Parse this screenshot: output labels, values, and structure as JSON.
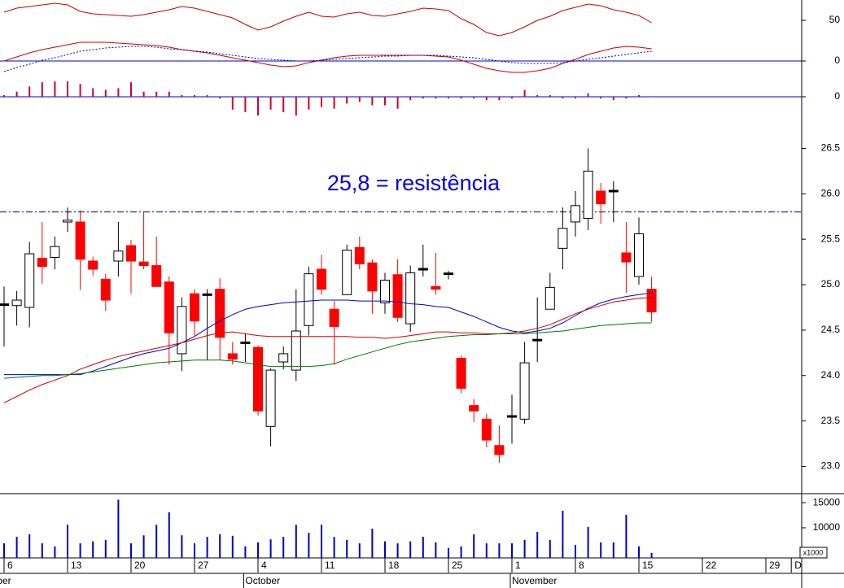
{
  "chart_data": [
    {
      "type": "line",
      "ylim": [
        -22,
        75
      ],
      "yticks": [
        0,
        50
      ],
      "zero_line_color": "#0000cc",
      "series": [
        {
          "color": "#cc0000",
          "values": [
            60,
            65,
            67,
            69,
            71,
            69,
            61,
            58,
            57,
            56,
            55,
            57,
            60,
            63,
            67,
            65,
            61,
            57,
            53,
            45,
            38,
            42,
            49,
            55,
            60,
            55,
            54,
            58,
            60,
            56,
            55,
            58,
            61,
            65,
            64,
            62,
            52,
            45,
            35,
            31,
            35,
            42,
            50,
            55,
            62,
            66,
            70,
            68,
            63,
            60,
            56,
            47
          ]
        },
        {
          "color": "#cc0000",
          "values": [
            0,
            5,
            10,
            14,
            17,
            20,
            23,
            23,
            23,
            22,
            21,
            20,
            19,
            17,
            14,
            12,
            10,
            7,
            4,
            1,
            -2,
            -5,
            -7,
            -6,
            -2,
            1,
            4,
            6,
            7,
            7,
            7,
            7,
            7,
            7,
            6,
            5,
            1,
            -4,
            -9,
            -12,
            -14,
            -14,
            -12,
            -9,
            -3,
            2,
            8,
            12,
            16,
            18,
            17,
            15
          ]
        },
        {
          "color": "#0000cc",
          "dash": true,
          "values": [
            -13,
            -8,
            -4,
            1,
            4,
            8,
            12,
            14,
            16,
            17,
            18,
            18,
            17,
            15,
            14,
            12,
            11,
            9,
            7,
            5,
            3,
            2,
            1,
            0,
            0,
            1,
            2,
            3,
            4,
            5,
            6,
            6,
            7,
            7,
            7,
            6,
            5,
            4,
            2,
            0,
            -2,
            -3,
            -3,
            -3,
            -2,
            0,
            2,
            4,
            6,
            8,
            10,
            12
          ]
        }
      ]
    },
    {
      "type": "bar",
      "ylim": [
        -20,
        20
      ],
      "yticks": [
        0
      ],
      "zero_line_color": "#0000cc",
      "color": "#cc0033",
      "values": [
        2,
        6,
        12,
        17,
        18,
        18,
        15,
        10,
        8,
        10,
        17,
        6,
        6,
        6,
        2,
        2,
        2,
        -2,
        -15,
        -18,
        -22,
        -15,
        -18,
        -22,
        -15,
        -12,
        -14,
        -8,
        -6,
        -10,
        -10,
        -14,
        -4,
        -2,
        -2,
        -2,
        -2,
        -2,
        -4,
        -4,
        -2,
        8,
        2,
        2,
        -2,
        -2,
        4,
        -2,
        -4,
        -2,
        2,
        0
      ]
    },
    {
      "type": "candlestick",
      "ylim": [
        22.7,
        26.88
      ],
      "yticks": [
        {
          "value": 23,
          "label": "23.0"
        },
        23.5,
        {
          "value": 24,
          "label": "24.0"
        },
        24.5,
        {
          "value": 25,
          "label": "25.0"
        },
        25.5,
        {
          "value": 26,
          "label": "26.0"
        },
        26.5
      ],
      "up_color": "#000000",
      "down_color": "#ff0000",
      "open": [
        24.78,
        24.77,
        24.75,
        25.29,
        25.3,
        25.69,
        25.69,
        25.26,
        25.06,
        25.26,
        25.43,
        25.25,
        25.21,
        25.03,
        24.24,
        24.9,
        24.89,
        24.95,
        24.24,
        24.36,
        24.31,
        23.44,
        24.15,
        24.06,
        24.55,
        25.17,
        24.73,
        24.89,
        25.41,
        25.24,
        24.8,
        25.11,
        24.57,
        25.17,
        24.98,
        25.12,
        24.19,
        23.67,
        23.52,
        23.23,
        23.55,
        23.52,
        24.39,
        24.73,
        25.4,
        25.69,
        25.73,
        26.03,
        26.03,
        25.35,
        25.09,
        24.95
      ],
      "high": [
        24.98,
        24.93,
        25.47,
        25.69,
        25.53,
        25.85,
        25.82,
        25.31,
        25.12,
        25.69,
        25.49,
        25.8,
        25.53,
        25.09,
        24.86,
        24.95,
        24.95,
        25.07,
        24.37,
        24.46,
        24.33,
        24.08,
        24.32,
        24.95,
        25.2,
        25.33,
        24.82,
        25.44,
        25.53,
        25.28,
        25.13,
        25.28,
        25.21,
        25.44,
        25.35,
        25.15,
        24.22,
        23.74,
        23.58,
        23.45,
        23.79,
        24.37,
        24.86,
        25.13,
        25.85,
        26.03,
        26.5,
        26.12,
        26.14,
        25.69,
        25.74,
        25.09
      ],
      "low": [
        24.32,
        24.55,
        24.53,
        25.01,
        25.17,
        25.58,
        24.94,
        25.1,
        24.71,
        25.09,
        24.9,
        25.17,
        24.98,
        24.12,
        24.05,
        24.44,
        24.17,
        24.17,
        24.12,
        24.15,
        23.56,
        23.22,
        24.07,
        23.94,
        24.44,
        24.89,
        24.12,
        24.89,
        25.17,
        24.68,
        24.68,
        24.59,
        24.48,
        25.09,
        24.89,
        25.06,
        23.81,
        23.49,
        23.21,
        23.04,
        23.25,
        23.47,
        24.15,
        24.73,
        25.17,
        25.53,
        25.6,
        25.67,
        25.69,
        24.91,
        25.0,
        24.59
      ],
      "close": [
        24.78,
        24.83,
        25.34,
        25.2,
        25.42,
        25.71,
        25.28,
        25.17,
        24.83,
        25.37,
        25.26,
        25.21,
        24.98,
        24.47,
        24.76,
        24.6,
        24.89,
        24.42,
        24.18,
        24.36,
        23.61,
        24.06,
        24.24,
        24.49,
        25.12,
        24.95,
        24.54,
        25.38,
        25.23,
        24.93,
        25.05,
        24.64,
        25.13,
        25.17,
        24.95,
        25.12,
        23.86,
        23.61,
        23.29,
        23.13,
        23.55,
        24.14,
        24.39,
        24.97,
        25.62,
        25.87,
        26.25,
        25.89,
        26.03,
        25.25,
        25.56,
        24.7
      ],
      "series": [
        {
          "color": "#0000cc",
          "values": [
            24.01,
            24.01,
            24.01,
            24.01,
            24.01,
            24.01,
            24.01,
            24.05,
            24.1,
            24.15,
            24.2,
            24.24,
            24.27,
            24.3,
            24.36,
            24.43,
            24.52,
            24.6,
            24.67,
            24.73,
            24.76,
            24.78,
            24.8,
            24.81,
            24.82,
            24.83,
            24.83,
            24.83,
            24.82,
            24.82,
            24.82,
            24.81,
            24.79,
            24.78,
            24.76,
            24.75,
            24.7,
            24.65,
            24.59,
            24.53,
            24.49,
            24.47,
            24.49,
            24.52,
            24.58,
            24.66,
            24.74,
            24.8,
            24.84,
            24.87,
            24.89,
            24.91
          ]
        },
        {
          "color": "#cc0000",
          "values": [
            23.7,
            23.77,
            23.84,
            23.9,
            23.95,
            24.0,
            24.07,
            24.12,
            24.17,
            24.21,
            24.24,
            24.27,
            24.3,
            24.33,
            24.36,
            24.4,
            24.44,
            24.47,
            24.48,
            24.46,
            24.44,
            24.43,
            24.43,
            24.43,
            24.43,
            24.43,
            24.43,
            24.43,
            24.42,
            24.42,
            24.41,
            24.42,
            24.44,
            24.46,
            24.48,
            24.48,
            24.47,
            24.47,
            24.46,
            24.46,
            24.47,
            24.49,
            24.52,
            24.56,
            24.62,
            24.68,
            24.73,
            24.77,
            24.81,
            24.83,
            24.85,
            24.86
          ]
        },
        {
          "color": "#007700",
          "values": [
            23.97,
            23.98,
            23.99,
            24.0,
            24.0,
            24.01,
            24.02,
            24.04,
            24.06,
            24.08,
            24.1,
            24.12,
            24.14,
            24.15,
            24.16,
            24.17,
            24.17,
            24.17,
            24.16,
            24.14,
            24.12,
            24.1,
            24.1,
            24.1,
            24.1,
            24.11,
            24.13,
            24.18,
            24.22,
            24.26,
            24.3,
            24.34,
            24.37,
            24.39,
            24.41,
            24.43,
            24.44,
            24.45,
            24.45,
            24.46,
            24.46,
            24.46,
            24.47,
            24.48,
            24.49,
            24.51,
            24.53,
            24.55,
            24.56,
            24.57,
            24.58,
            24.58
          ]
        }
      ],
      "resistance": 25.8,
      "resistance_color": "#000066",
      "annotation": "25,8 = resistência",
      "annotation_color": "#0000ee"
    },
    {
      "type": "bar",
      "ylim": [
        4000,
        16800
      ],
      "yticks": [
        10000,
        15000
      ],
      "color": "#0000cc",
      "unit_label": "x1000",
      "categories": [
        "6",
        null,
        null,
        null,
        null,
        "13",
        null,
        null,
        null,
        null,
        "20",
        null,
        null,
        null,
        null,
        "27",
        null,
        null,
        null,
        null,
        "4",
        null,
        null,
        null,
        null,
        "11",
        null,
        null,
        null,
        null,
        "18",
        null,
        null,
        null,
        null,
        "25",
        null,
        null,
        null,
        null,
        "1",
        null,
        null,
        null,
        null,
        "8",
        null,
        null,
        null,
        null,
        "15",
        null,
        null,
        null,
        null,
        "22",
        null,
        null,
        null,
        null,
        "29",
        null,
        "D"
      ],
      "months": [
        "mber",
        "October",
        "November"
      ],
      "values": [
        6900,
        8200,
        8700,
        6900,
        6300,
        10600,
        6900,
        7300,
        7600,
        15600,
        6900,
        8500,
        10600,
        13100,
        8500,
        6900,
        8200,
        8700,
        8400,
        6300,
        7100,
        7700,
        8200,
        10600,
        9000,
        10600,
        8200,
        7600,
        6900,
        9800,
        7300,
        6900,
        7300,
        8200,
        7100,
        6000,
        6300,
        8700,
        6900,
        6900,
        6900,
        7600,
        9200,
        7600,
        13400,
        6600,
        10200,
        7100,
        7100,
        12600,
        6300,
        5000,
        null,
        null,
        null,
        null,
        null,
        null,
        null,
        null,
        null,
        null,
        null
      ]
    }
  ]
}
